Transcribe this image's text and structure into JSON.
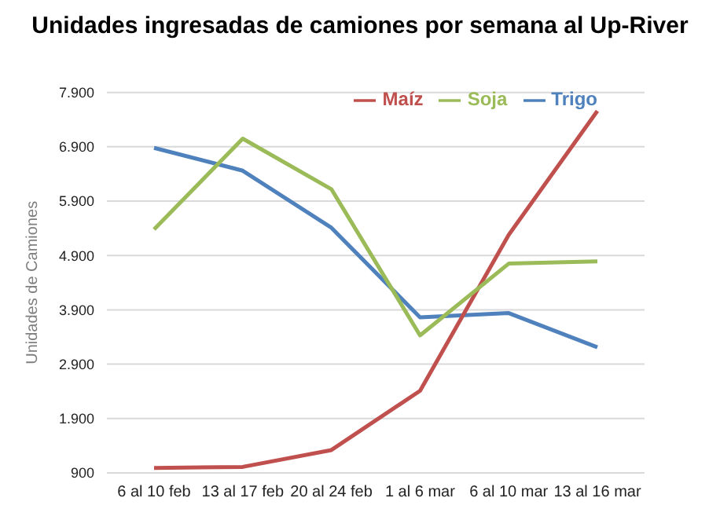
{
  "chart_data": {
    "type": "line",
    "title": "Unidades ingresadas de camiones por semana al Up-River",
    "ylabel": "Unidades de Camiones",
    "categories": [
      "6 al 10 feb",
      "13 al 17  feb",
      "20 al 24 feb",
      "1 al 6 mar",
      "6 al 10 mar",
      "13 al 16 mar"
    ],
    "series": [
      {
        "name": "Trigo",
        "color": "#4f81bd",
        "values": [
          6880,
          6460,
          5410,
          3760,
          3840,
          3210
        ]
      },
      {
        "name": "Maíz",
        "color": "#c0504d",
        "values": [
          990,
          1010,
          1320,
          2410,
          5280,
          7560
        ]
      },
      {
        "name": "Soja",
        "color": "#9bbb59",
        "values": [
          5380,
          7050,
          6120,
          3430,
          4750,
          4790
        ]
      }
    ],
    "ylim": [
      900,
      7900
    ],
    "yticks": [
      {
        "value": 900,
        "label": "900"
      },
      {
        "value": 1900,
        "label": "1.900"
      },
      {
        "value": 2900,
        "label": "2.900"
      },
      {
        "value": 3900,
        "label": "3.900"
      },
      {
        "value": 4900,
        "label": "4.900"
      },
      {
        "value": 5900,
        "label": "5.900"
      },
      {
        "value": 6900,
        "label": "6.900"
      },
      {
        "value": 7900,
        "label": "7.900"
      }
    ],
    "grid": "y",
    "legend": "top right",
    "marker": "none",
    "line_style": "solid"
  }
}
